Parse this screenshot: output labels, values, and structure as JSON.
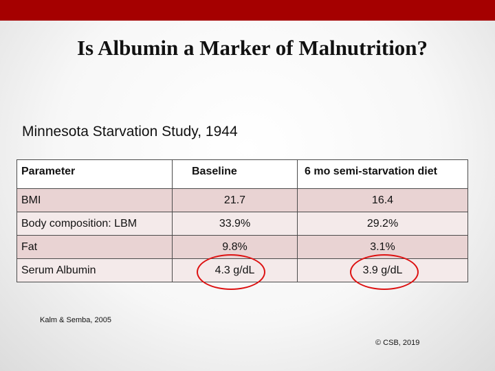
{
  "title": "Is Albumin a Marker of Malnutrition?",
  "subtitle": "Minnesota Starvation Study, 1944",
  "table": {
    "headers": [
      "Parameter",
      "Baseline",
      "6 mo semi-starvation diet"
    ],
    "rows": [
      [
        "BMI",
        "21.7",
        "16.4"
      ],
      [
        "Body composition: LBM",
        "33.9%",
        "29.2%"
      ],
      [
        "Fat",
        "9.8%",
        "3.1%"
      ],
      [
        "Serum Albumin",
        "4.3 g/dL",
        "3.9 g/dL"
      ]
    ]
  },
  "highlight_color": "#dd1111",
  "accent_color": "#a50000",
  "citation": "Kalm & Semba, 2005",
  "copyright": "© CSB, 2019"
}
